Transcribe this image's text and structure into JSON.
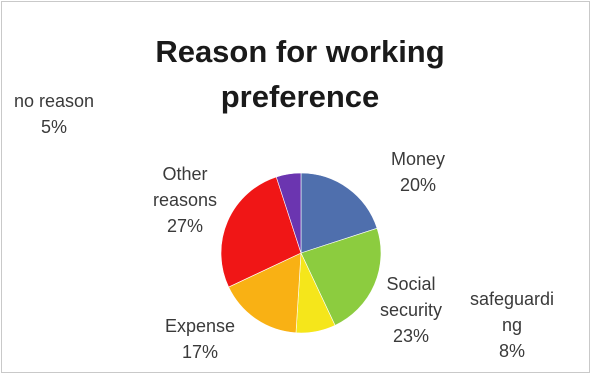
{
  "chart_data": {
    "type": "pie",
    "title_lines": [
      "Reason for working",
      "preference"
    ],
    "slices": [
      {
        "label_lines": [
          "Money"
        ],
        "pct_text": "20%",
        "value": 20,
        "color": "#4f6fad"
      },
      {
        "label_lines": [
          "Social",
          "security"
        ],
        "pct_text": "23%",
        "value": 23,
        "color": "#8ccc3f"
      },
      {
        "label_lines": [
          "safeguardi",
          "ng"
        ],
        "pct_text": "8%",
        "value": 8,
        "color": "#f5e61b"
      },
      {
        "label_lines": [
          "Expense"
        ],
        "pct_text": "17%",
        "value": 17,
        "color": "#f9b114"
      },
      {
        "label_lines": [
          "Other",
          "reasons"
        ],
        "pct_text": "27%",
        "value": 27,
        "color": "#f01616"
      },
      {
        "label_lines": [
          "no reason"
        ],
        "pct_text": "5%",
        "value": 5,
        "color": "#6b35b0"
      }
    ],
    "legend": "none"
  }
}
